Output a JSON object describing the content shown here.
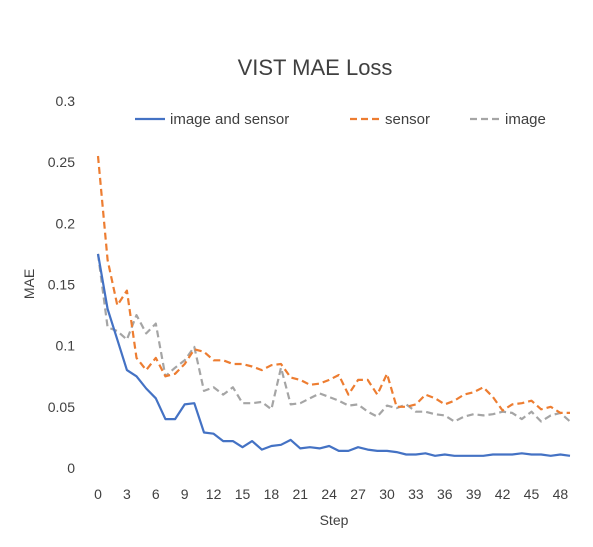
{
  "chart_data": {
    "type": "line",
    "title": "VIST MAE Loss",
    "xlabel": "Step",
    "ylabel": "MAE",
    "xlim": [
      0,
      49
    ],
    "ylim": [
      0,
      0.3
    ],
    "x_ticks": [
      "0",
      "3",
      "6",
      "9",
      "12",
      "15",
      "18",
      "21",
      "24",
      "27",
      "30",
      "33",
      "36",
      "39",
      "42",
      "45",
      "48"
    ],
    "y_ticks": [
      "0",
      "0.05",
      "0.1",
      "0.15",
      "0.2",
      "0.25",
      "0.3"
    ],
    "grid": false,
    "legend_position": "top",
    "x": [
      0,
      1,
      2,
      3,
      4,
      5,
      6,
      7,
      8,
      9,
      10,
      11,
      12,
      13,
      14,
      15,
      16,
      17,
      18,
      19,
      20,
      21,
      22,
      23,
      24,
      25,
      26,
      27,
      28,
      29,
      30,
      31,
      32,
      33,
      34,
      35,
      36,
      37,
      38,
      39,
      40,
      41,
      42,
      43,
      44,
      45,
      46,
      47,
      48,
      49
    ],
    "series": [
      {
        "name": "image and sensor",
        "color": "#4472C4",
        "dash": "solid",
        "values": [
          0.175,
          0.13,
          0.105,
          0.08,
          0.075,
          0.065,
          0.057,
          0.04,
          0.04,
          0.052,
          0.053,
          0.029,
          0.028,
          0.022,
          0.022,
          0.017,
          0.022,
          0.015,
          0.018,
          0.019,
          0.023,
          0.016,
          0.017,
          0.016,
          0.018,
          0.014,
          0.014,
          0.017,
          0.015,
          0.014,
          0.014,
          0.013,
          0.011,
          0.011,
          0.012,
          0.01,
          0.011,
          0.01,
          0.01,
          0.01,
          0.01,
          0.011,
          0.011,
          0.011,
          0.012,
          0.011,
          0.011,
          0.01,
          0.011,
          0.01
        ]
      },
      {
        "name": "sensor",
        "color": "#ED7D31",
        "dash": "dashed",
        "values": [
          0.255,
          0.17,
          0.133,
          0.145,
          0.09,
          0.08,
          0.09,
          0.075,
          0.077,
          0.085,
          0.097,
          0.095,
          0.088,
          0.088,
          0.085,
          0.085,
          0.083,
          0.08,
          0.084,
          0.085,
          0.074,
          0.072,
          0.068,
          0.069,
          0.072,
          0.076,
          0.06,
          0.072,
          0.072,
          0.06,
          0.077,
          0.05,
          0.05,
          0.052,
          0.06,
          0.057,
          0.052,
          0.055,
          0.06,
          0.062,
          0.066,
          0.058,
          0.047,
          0.052,
          0.053,
          0.055,
          0.048,
          0.05,
          0.045,
          0.045
        ]
      },
      {
        "name": "image",
        "color": "#A5A5A5",
        "dash": "dashed",
        "values": [
          0.175,
          0.115,
          0.112,
          0.105,
          0.125,
          0.11,
          0.118,
          0.075,
          0.082,
          0.088,
          0.099,
          0.063,
          0.066,
          0.06,
          0.066,
          0.053,
          0.053,
          0.054,
          0.048,
          0.082,
          0.052,
          0.053,
          0.057,
          0.061,
          0.058,
          0.055,
          0.051,
          0.052,
          0.046,
          0.042,
          0.051,
          0.049,
          0.052,
          0.046,
          0.046,
          0.044,
          0.043,
          0.038,
          0.042,
          0.044,
          0.043,
          0.044,
          0.046,
          0.045,
          0.04,
          0.046,
          0.038,
          0.043,
          0.045,
          0.038
        ]
      }
    ]
  }
}
